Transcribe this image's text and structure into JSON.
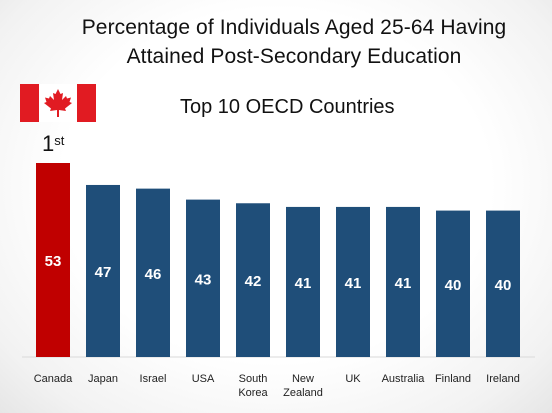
{
  "header": {
    "title_line1": "Percentage of Individuals Aged 25-64 Having",
    "title_line2": "Attained Post-Secondary Education",
    "subtitle": "Top 10 OECD Countries",
    "rank_number": "1",
    "rank_suffix": "st"
  },
  "icons": {
    "flag": "canada-flag-icon"
  },
  "colors": {
    "highlight": "#c00000",
    "bar": "#1f4e79",
    "flag_red": "#e11b22"
  },
  "chart_data": {
    "type": "bar",
    "title": "Percentage of Individuals Aged 25-64 Having Attained Post-Secondary Education",
    "subtitle": "Top 10 OECD Countries",
    "categories": [
      "Canada",
      "Japan",
      "Israel",
      "USA",
      "South Korea",
      "New Zealand",
      "UK",
      "Australia",
      "Finland",
      "Ireland"
    ],
    "category_lines": [
      [
        "Canada"
      ],
      [
        "Japan"
      ],
      [
        "Israel"
      ],
      [
        "USA"
      ],
      [
        "South",
        "Korea"
      ],
      [
        "New",
        "Zealand"
      ],
      [
        "UK"
      ],
      [
        "Australia"
      ],
      [
        "Finland"
      ],
      [
        "Ireland"
      ]
    ],
    "values": [
      53,
      47,
      46,
      43,
      42,
      41,
      41,
      41,
      40,
      40
    ],
    "highlight_index": 0,
    "xlabel": "",
    "ylabel": "",
    "grid": false,
    "legend": "none"
  }
}
